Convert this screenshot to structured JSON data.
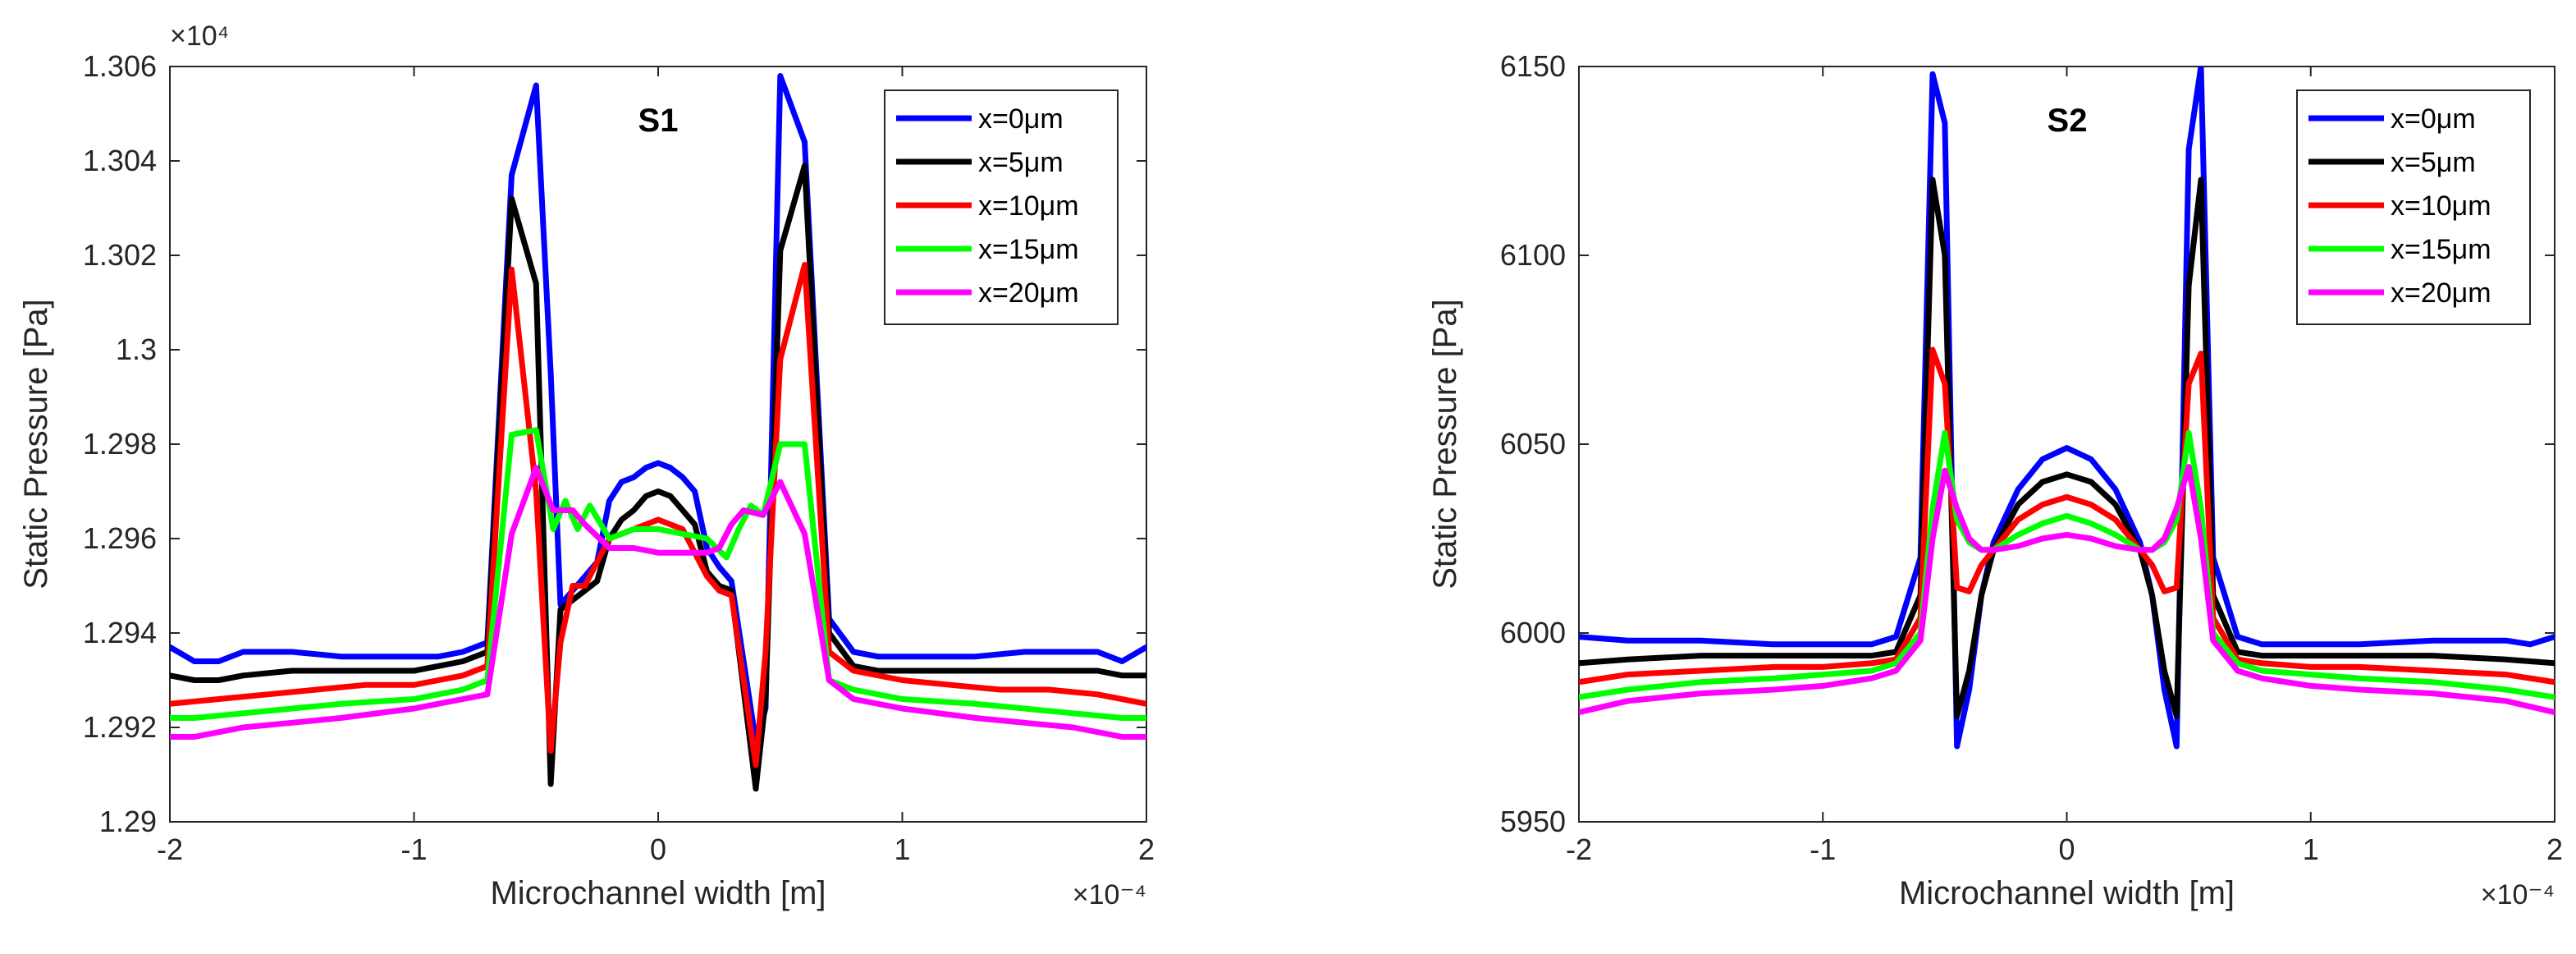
{
  "chart_data": [
    {
      "type": "line",
      "id": "s1",
      "title": "S1",
      "xlabel": "Microchannel width [m]",
      "ylabel": "Static Pressure [Pa]",
      "x_exponent": "×10⁻⁴",
      "y_exponent": "×10⁴",
      "xlim": [
        -2,
        2
      ],
      "ylim": [
        1.29,
        1.306
      ],
      "xticks": [
        -2,
        -1,
        0,
        1,
        2
      ],
      "xtick_labels": [
        "-2",
        "-1",
        "0",
        "1",
        "2"
      ],
      "yticks": [
        1.29,
        1.292,
        1.294,
        1.296,
        1.298,
        1.3,
        1.302,
        1.304,
        1.306
      ],
      "ytick_labels": [
        "1.29",
        "1.292",
        "1.294",
        "1.296",
        "1.298",
        "1.3",
        "1.302",
        "1.304",
        "1.306"
      ],
      "legend_position": "top-right",
      "series": [
        {
          "name": "x=0μm",
          "color": "#0000ff",
          "x": [
            -2.0,
            -1.9,
            -1.8,
            -1.7,
            -1.5,
            -1.3,
            -1.0,
            -0.9,
            -0.8,
            -0.7,
            -0.6,
            -0.5,
            -0.44,
            -0.4,
            -0.3,
            -0.25,
            -0.2,
            -0.15,
            -0.1,
            -0.05,
            0,
            0.05,
            0.1,
            0.15,
            0.2,
            0.25,
            0.3,
            0.4,
            0.44,
            0.5,
            0.6,
            0.7,
            0.8,
            0.9,
            1.0,
            1.3,
            1.5,
            1.7,
            1.8,
            1.9,
            2.0
          ],
          "values": [
            1.2937,
            1.2934,
            1.2934,
            1.2936,
            1.2936,
            1.2935,
            1.2935,
            1.2935,
            1.2936,
            1.2938,
            1.3037,
            1.3056,
            1.2995,
            1.2946,
            1.2952,
            1.2955,
            1.2968,
            1.2972,
            1.2973,
            1.2975,
            1.2976,
            1.2975,
            1.2973,
            1.297,
            1.2958,
            1.2954,
            1.2951,
            1.2917,
            1.2924,
            1.3058,
            1.3044,
            1.2943,
            1.2936,
            1.2935,
            1.2935,
            1.2935,
            1.2936,
            1.2936,
            1.2936,
            1.2934,
            1.2937
          ]
        },
        {
          "name": "x=5μm",
          "color": "#000000",
          "x": [
            -2.0,
            -1.9,
            -1.8,
            -1.7,
            -1.5,
            -1.3,
            -1.0,
            -0.9,
            -0.8,
            -0.7,
            -0.6,
            -0.5,
            -0.44,
            -0.4,
            -0.3,
            -0.25,
            -0.2,
            -0.15,
            -0.1,
            -0.05,
            0,
            0.05,
            0.1,
            0.15,
            0.2,
            0.25,
            0.3,
            0.4,
            0.44,
            0.5,
            0.6,
            0.7,
            0.8,
            0.9,
            1.0,
            1.3,
            1.5,
            1.7,
            1.8,
            1.9,
            2.0
          ],
          "values": [
            1.2931,
            1.293,
            1.293,
            1.2931,
            1.2932,
            1.2932,
            1.2932,
            1.2933,
            1.2934,
            1.2936,
            1.3032,
            1.3014,
            1.2908,
            1.2945,
            1.2949,
            1.2951,
            1.296,
            1.2964,
            1.2966,
            1.2969,
            1.297,
            1.2969,
            1.2966,
            1.2963,
            1.2953,
            1.295,
            1.2949,
            1.2907,
            1.2926,
            1.3021,
            1.3039,
            1.294,
            1.2933,
            1.2932,
            1.2932,
            1.2932,
            1.2932,
            1.2932,
            1.2932,
            1.2931,
            1.2931
          ]
        },
        {
          "name": "x=10μm",
          "color": "#ff0000",
          "x": [
            -2.0,
            -1.8,
            -1.6,
            -1.4,
            -1.2,
            -1.0,
            -0.9,
            -0.8,
            -0.7,
            -0.6,
            -0.5,
            -0.44,
            -0.4,
            -0.35,
            -0.3,
            -0.25,
            -0.2,
            -0.1,
            -0.05,
            0,
            0.05,
            0.1,
            0.2,
            0.25,
            0.3,
            0.4,
            0.44,
            0.5,
            0.6,
            0.7,
            0.8,
            1.0,
            1.2,
            1.4,
            1.6,
            1.8,
            2.0
          ],
          "values": [
            1.2925,
            1.2926,
            1.2927,
            1.2928,
            1.2929,
            1.2929,
            1.293,
            1.2931,
            1.2933,
            1.3017,
            1.297,
            1.2915,
            1.2938,
            1.295,
            1.295,
            1.2955,
            1.296,
            1.2962,
            1.2963,
            1.2964,
            1.2963,
            1.2962,
            1.2952,
            1.2949,
            1.2948,
            1.2912,
            1.2936,
            1.2998,
            1.3018,
            1.2936,
            1.2932,
            1.293,
            1.2929,
            1.2928,
            1.2928,
            1.2927,
            1.2925
          ]
        },
        {
          "name": "x=15μm",
          "color": "#00ff00",
          "x": [
            -2.0,
            -1.9,
            -1.7,
            -1.5,
            -1.3,
            -1.0,
            -0.8,
            -0.7,
            -0.6,
            -0.5,
            -0.43,
            -0.38,
            -0.33,
            -0.28,
            -0.2,
            -0.1,
            0,
            0.1,
            0.2,
            0.28,
            0.33,
            0.38,
            0.43,
            0.5,
            0.6,
            0.7,
            0.8,
            1.0,
            1.3,
            1.5,
            1.7,
            1.9,
            2.0
          ],
          "values": [
            1.2922,
            1.2922,
            1.2923,
            1.2924,
            1.2925,
            1.2926,
            1.2928,
            1.293,
            1.2982,
            1.2983,
            1.2962,
            1.2968,
            1.2962,
            1.2967,
            1.296,
            1.2962,
            1.2962,
            1.2961,
            1.296,
            1.2956,
            1.2962,
            1.2967,
            1.2965,
            1.298,
            1.298,
            1.293,
            1.2928,
            1.2926,
            1.2925,
            1.2924,
            1.2923,
            1.2922,
            1.2922
          ]
        },
        {
          "name": "x=20μm",
          "color": "#ff00ff",
          "x": [
            -2.0,
            -1.9,
            -1.7,
            -1.5,
            -1.3,
            -1.0,
            -0.8,
            -0.7,
            -0.6,
            -0.5,
            -0.43,
            -0.35,
            -0.3,
            -0.2,
            -0.1,
            0,
            0.1,
            0.2,
            0.25,
            0.3,
            0.35,
            0.43,
            0.5,
            0.6,
            0.7,
            0.8,
            1.0,
            1.3,
            1.5,
            1.7,
            1.9,
            2.0
          ],
          "values": [
            1.2918,
            1.2918,
            1.292,
            1.2921,
            1.2922,
            1.2924,
            1.2926,
            1.2927,
            1.2961,
            1.2975,
            1.2966,
            1.2966,
            1.2963,
            1.2958,
            1.2958,
            1.2957,
            1.2957,
            1.2957,
            1.2958,
            1.2963,
            1.2966,
            1.2965,
            1.2972,
            1.2961,
            1.293,
            1.2926,
            1.2924,
            1.2922,
            1.2921,
            1.292,
            1.2918,
            1.2918
          ]
        }
      ]
    },
    {
      "type": "line",
      "id": "s2",
      "title": "S2",
      "xlabel": "Microchannel width [m]",
      "ylabel": "Static Pressure [Pa]",
      "x_exponent": "×10⁻⁴",
      "xlim": [
        -2,
        2
      ],
      "ylim": [
        5950,
        6150
      ],
      "xticks": [
        -2,
        -1,
        0,
        1,
        2
      ],
      "xtick_labels": [
        "-2",
        "-1",
        "0",
        "1",
        "2"
      ],
      "yticks": [
        5950,
        6000,
        6050,
        6100,
        6150
      ],
      "ytick_labels": [
        "5950",
        "6000",
        "6050",
        "6100",
        "6150"
      ],
      "legend_position": "top-right",
      "series": [
        {
          "name": "x=0μm",
          "color": "#0000ff",
          "x": [
            -2.0,
            -1.8,
            -1.5,
            -1.2,
            -1.0,
            -0.8,
            -0.7,
            -0.6,
            -0.55,
            -0.5,
            -0.45,
            -0.4,
            -0.35,
            -0.3,
            -0.2,
            -0.1,
            0,
            0.1,
            0.2,
            0.3,
            0.35,
            0.4,
            0.45,
            0.5,
            0.55,
            0.6,
            0.7,
            0.8,
            1.0,
            1.2,
            1.5,
            1.8,
            1.9,
            2.0
          ],
          "values": [
            5999,
            5998,
            5998,
            5997,
            5997,
            5997,
            5999,
            6020,
            6148,
            6135,
            5970,
            5985,
            6010,
            6024,
            6038,
            6046,
            6049,
            6046,
            6038,
            6024,
            6010,
            5985,
            5970,
            6128,
            6150,
            6020,
            5999,
            5997,
            5997,
            5997,
            5998,
            5998,
            5997,
            5999
          ]
        },
        {
          "name": "x=5μm",
          "color": "#000000",
          "x": [
            -2.0,
            -1.8,
            -1.5,
            -1.2,
            -1.0,
            -0.8,
            -0.7,
            -0.6,
            -0.55,
            -0.5,
            -0.45,
            -0.4,
            -0.35,
            -0.3,
            -0.2,
            -0.1,
            0,
            0.1,
            0.2,
            0.3,
            0.35,
            0.4,
            0.45,
            0.5,
            0.55,
            0.6,
            0.7,
            0.8,
            1.0,
            1.2,
            1.5,
            1.8,
            2.0
          ],
          "values": [
            5992,
            5993,
            5994,
            5994,
            5994,
            5994,
            5995,
            6010,
            6120,
            6100,
            5978,
            5990,
            6010,
            6022,
            6034,
            6040,
            6042,
            6040,
            6034,
            6022,
            6010,
            5990,
            5978,
            6092,
            6120,
            6010,
            5995,
            5994,
            5994,
            5994,
            5994,
            5993,
            5992
          ]
        },
        {
          "name": "x=10μm",
          "color": "#ff0000",
          "x": [
            -2.0,
            -1.8,
            -1.5,
            -1.2,
            -1.0,
            -0.8,
            -0.7,
            -0.6,
            -0.55,
            -0.5,
            -0.45,
            -0.4,
            -0.35,
            -0.3,
            -0.2,
            -0.1,
            0,
            0.1,
            0.2,
            0.3,
            0.35,
            0.4,
            0.45,
            0.5,
            0.55,
            0.6,
            0.7,
            0.8,
            1.0,
            1.2,
            1.5,
            1.8,
            2.0
          ],
          "values": [
            5987,
            5989,
            5990,
            5991,
            5991,
            5992,
            5993,
            6004,
            6075,
            6066,
            6012,
            6011,
            6018,
            6022,
            6030,
            6034,
            6036,
            6034,
            6030,
            6022,
            6018,
            6011,
            6012,
            6066,
            6074,
            6004,
            5993,
            5992,
            5991,
            5991,
            5990,
            5989,
            5987
          ]
        },
        {
          "name": "x=15μm",
          "color": "#00ff00",
          "x": [
            -2.0,
            -1.8,
            -1.5,
            -1.2,
            -1.0,
            -0.8,
            -0.7,
            -0.6,
            -0.55,
            -0.5,
            -0.45,
            -0.4,
            -0.35,
            -0.3,
            -0.2,
            -0.1,
            0,
            0.1,
            0.2,
            0.3,
            0.35,
            0.4,
            0.45,
            0.5,
            0.55,
            0.6,
            0.7,
            0.8,
            1.0,
            1.2,
            1.5,
            1.8,
            2.0
          ],
          "values": [
            5983,
            5985,
            5987,
            5988,
            5989,
            5990,
            5992,
            6000,
            6033,
            6053,
            6030,
            6024,
            6022,
            6022,
            6026,
            6029,
            6031,
            6029,
            6026,
            6022,
            6022,
            6024,
            6030,
            6053,
            6033,
            6000,
            5992,
            5990,
            5989,
            5988,
            5987,
            5985,
            5983
          ]
        },
        {
          "name": "x=20μm",
          "color": "#ff00ff",
          "x": [
            -2.0,
            -1.8,
            -1.5,
            -1.2,
            -1.0,
            -0.8,
            -0.7,
            -0.6,
            -0.55,
            -0.5,
            -0.45,
            -0.4,
            -0.35,
            -0.3,
            -0.2,
            -0.1,
            0,
            0.1,
            0.2,
            0.3,
            0.35,
            0.4,
            0.45,
            0.5,
            0.55,
            0.6,
            0.7,
            0.8,
            1.0,
            1.2,
            1.5,
            1.8,
            2.0
          ],
          "values": [
            5979,
            5982,
            5984,
            5985,
            5986,
            5988,
            5990,
            5998,
            6025,
            6043,
            6033,
            6025,
            6022,
            6022,
            6023,
            6025,
            6026,
            6025,
            6023,
            6022,
            6022,
            6025,
            6033,
            6044,
            6025,
            5998,
            5990,
            5988,
            5986,
            5985,
            5984,
            5982,
            5979
          ]
        }
      ]
    }
  ]
}
